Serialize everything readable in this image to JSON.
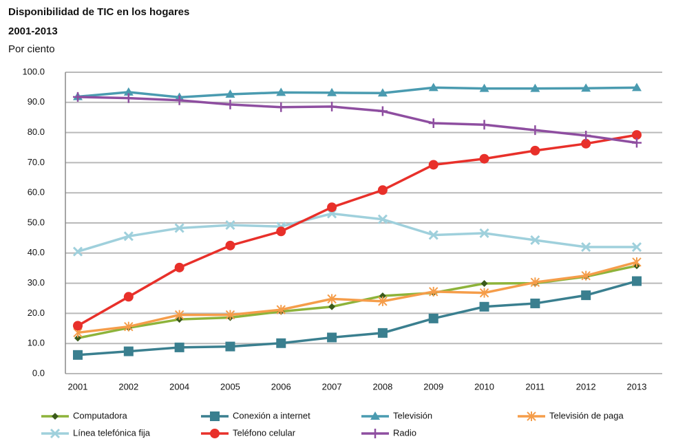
{
  "chart_data": {
    "type": "line",
    "title": "Disponibilidad de TIC en los hogares",
    "subtitle": "2001-2013",
    "y_label": "Por ciento",
    "categories": [
      "2001",
      "2002",
      "2004",
      "2005",
      "2006",
      "2007",
      "2008",
      "2009",
      "2010",
      "2011",
      "2012",
      "2013"
    ],
    "ylim": [
      0,
      100
    ],
    "yticks": [
      {
        "value": 0,
        "label": "0.0"
      },
      {
        "value": 10,
        "label": "10.0"
      },
      {
        "value": 20,
        "label": "20.0"
      },
      {
        "value": 30,
        "label": "30.0"
      },
      {
        "value": 40,
        "label": "40.0"
      },
      {
        "value": 50,
        "label": "50.0"
      },
      {
        "value": 60,
        "label": "60.0"
      },
      {
        "value": 70,
        "label": "70.0"
      },
      {
        "value": 80,
        "label": "80.0"
      },
      {
        "value": 90,
        "label": "90.0"
      },
      {
        "value": 100,
        "label": "100.0"
      }
    ],
    "grid": true,
    "series": [
      {
        "name": "Computadora",
        "color": "#8db33a",
        "marker": "diamond",
        "values": [
          11.8,
          15.2,
          18.0,
          18.6,
          20.6,
          22.2,
          25.8,
          26.8,
          29.9,
          30.0,
          32.2,
          35.8
        ]
      },
      {
        "name": "Conexión a internet",
        "color": "#3a7f8f",
        "marker": "square",
        "values": [
          6.2,
          7.4,
          8.7,
          9.0,
          10.1,
          12.0,
          13.5,
          18.3,
          22.2,
          23.3,
          26.0,
          30.7
        ]
      },
      {
        "name": "Televisión",
        "color": "#4a9bb0",
        "marker": "triangle",
        "values": [
          91.9,
          93.4,
          91.7,
          92.7,
          93.3,
          93.2,
          93.1,
          94.9,
          94.6,
          94.6,
          94.7,
          94.9
        ]
      },
      {
        "name": "Televisión de paga",
        "color": "#f59d4a",
        "marker": "star",
        "values": [
          13.6,
          15.6,
          19.5,
          19.5,
          21.2,
          24.8,
          24.0,
          27.2,
          26.8,
          30.3,
          32.5,
          37.0
        ]
      },
      {
        "name": "Línea telefónica fija",
        "color": "#9fd0dc",
        "marker": "x",
        "values": [
          40.5,
          45.6,
          48.3,
          49.3,
          48.8,
          53.1,
          51.2,
          46.0,
          46.6,
          44.3,
          42.0,
          42.0
        ]
      },
      {
        "name": "Teléfono celular",
        "color": "#e8302a",
        "marker": "circle",
        "values": [
          15.9,
          25.5,
          35.2,
          42.5,
          47.2,
          55.2,
          60.9,
          69.3,
          71.3,
          74.0,
          76.3,
          79.2
        ]
      },
      {
        "name": "Radio",
        "color": "#8e4ea0",
        "marker": "plus",
        "values": [
          91.8,
          91.4,
          90.7,
          89.3,
          88.4,
          88.6,
          87.1,
          83.1,
          82.6,
          80.8,
          79.0,
          76.6
        ]
      }
    ]
  }
}
